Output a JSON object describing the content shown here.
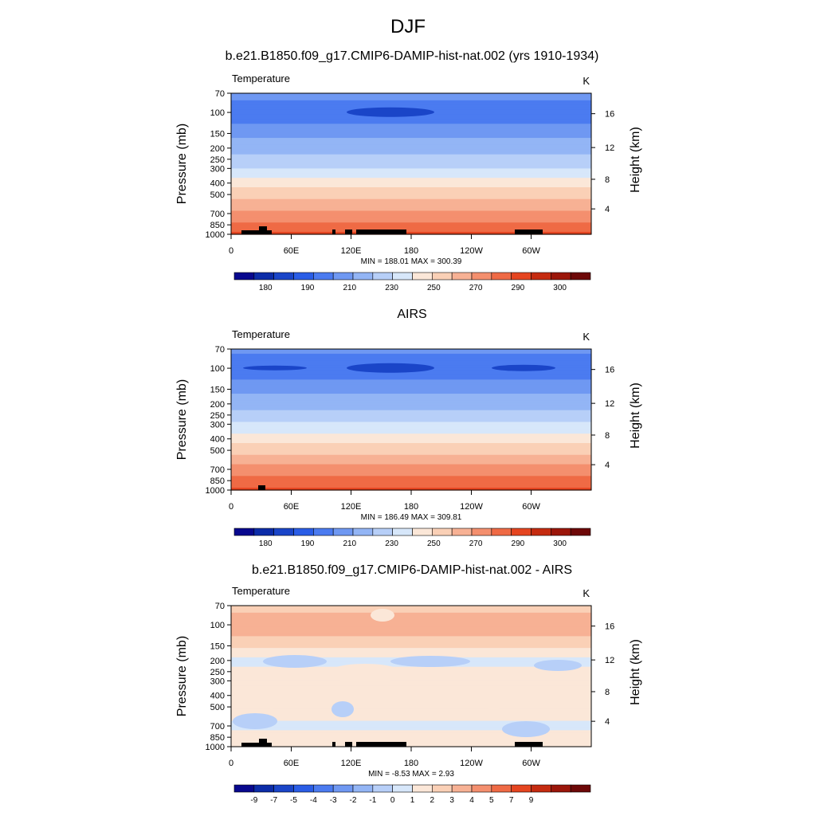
{
  "figure": {
    "title": "DJF"
  },
  "chart_data": [
    {
      "type": "contour",
      "title": "b.e21.B1850.f09_g17.CMIP6-DAMIP-hist-nat.002 (yrs 1910-1934)",
      "variable_label": "Temperature",
      "units": "K",
      "xlabel": "",
      "ylabel": "Pressure (mb)",
      "ylabel_right": "Height (km)",
      "x_ticks": [
        "0",
        "60E",
        "120E",
        "180",
        "120W",
        "60W"
      ],
      "y_ticks": [
        "70",
        "100",
        "150",
        "200",
        "250",
        "300",
        "400",
        "500",
        "700",
        "850",
        "1000"
      ],
      "y_ticks_right": [
        "4",
        "8",
        "12",
        "16"
      ],
      "stats": "MIN = 188.01  MAX = 300.39",
      "colorbar_labels": [
        "180",
        "190",
        "210",
        "230",
        "250",
        "270",
        "290",
        "300"
      ],
      "colorbar_colors": [
        "#08088e",
        "#0c2ca8",
        "#1a45c8",
        "#2a5de6",
        "#4b7bf0",
        "#6f98f2",
        "#93b5f5",
        "#b7cff8",
        "#d7e7fa",
        "#fbe7d8",
        "#fad0b6",
        "#f7b194",
        "#f48f6e",
        "#ef6a45",
        "#e54520",
        "#c52b10",
        "#9b160a",
        "#6d0808"
      ],
      "min": 188.01,
      "max": 300.39,
      "mean_profile_K": [
        [
          70,
          205
        ],
        [
          100,
          192
        ],
        [
          150,
          208
        ],
        [
          200,
          217
        ],
        [
          250,
          224
        ],
        [
          300,
          232
        ],
        [
          400,
          248
        ],
        [
          500,
          258
        ],
        [
          700,
          275
        ],
        [
          850,
          283
        ],
        [
          1000,
          292
        ]
      ]
    },
    {
      "type": "contour",
      "title": "AIRS",
      "variable_label": "Temperature",
      "units": "K",
      "xlabel": "",
      "ylabel": "Pressure (mb)",
      "ylabel_right": "Height (km)",
      "x_ticks": [
        "0",
        "60E",
        "120E",
        "180",
        "120W",
        "60W"
      ],
      "y_ticks": [
        "70",
        "100",
        "150",
        "200",
        "250",
        "300",
        "400",
        "500",
        "700",
        "850",
        "1000"
      ],
      "y_ticks_right": [
        "4",
        "8",
        "12",
        "16"
      ],
      "stats": "MIN = 186.49  MAX = 309.81",
      "colorbar_labels": [
        "180",
        "190",
        "210",
        "230",
        "250",
        "270",
        "290",
        "300"
      ],
      "colorbar_colors": [
        "#08088e",
        "#0c2ca8",
        "#1a45c8",
        "#2a5de6",
        "#4b7bf0",
        "#6f98f2",
        "#93b5f5",
        "#b7cff8",
        "#d7e7fa",
        "#fbe7d8",
        "#fad0b6",
        "#f7b194",
        "#f48f6e",
        "#ef6a45",
        "#e54520",
        "#c52b10",
        "#9b160a",
        "#6d0808"
      ],
      "min": 186.49,
      "max": 309.81,
      "mean_profile_K": [
        [
          70,
          204
        ],
        [
          100,
          190
        ],
        [
          150,
          207
        ],
        [
          200,
          216
        ],
        [
          250,
          224
        ],
        [
          300,
          233
        ],
        [
          400,
          249
        ],
        [
          500,
          259
        ],
        [
          700,
          276
        ],
        [
          850,
          284
        ],
        [
          1000,
          294
        ]
      ]
    },
    {
      "type": "contour",
      "title": "b.e21.B1850.f09_g17.CMIP6-DAMIP-hist-nat.002 - AIRS",
      "variable_label": "Temperature",
      "units": "K",
      "xlabel": "",
      "ylabel": "Pressure (mb)",
      "ylabel_right": "Height (km)",
      "x_ticks": [
        "0",
        "60E",
        "120E",
        "180",
        "120W",
        "60W"
      ],
      "y_ticks": [
        "70",
        "100",
        "150",
        "200",
        "250",
        "300",
        "400",
        "500",
        "700",
        "850",
        "1000"
      ],
      "y_ticks_right": [
        "4",
        "8",
        "12",
        "16"
      ],
      "stats": "MIN =  -8.53  MAX =   2.93",
      "colorbar_labels": [
        "-9",
        "-7",
        "-5",
        "-4",
        "-3",
        "-2",
        "-1",
        "0",
        "1",
        "2",
        "3",
        "4",
        "5",
        "7",
        "9"
      ],
      "colorbar_colors": [
        "#08088e",
        "#0c2ca8",
        "#1a45c8",
        "#2a5de6",
        "#4b7bf0",
        "#6f98f2",
        "#93b5f5",
        "#b7cff8",
        "#d7e7fa",
        "#fbe7d8",
        "#fad0b6",
        "#f7b194",
        "#f48f6e",
        "#ef6a45",
        "#e54520",
        "#c52b10",
        "#9b160a",
        "#6d0808"
      ],
      "min": -8.53,
      "max": 2.93,
      "mean_profile_K": [
        [
          70,
          0.3
        ],
        [
          100,
          2.0
        ],
        [
          150,
          0.2
        ],
        [
          200,
          -1.5
        ],
        [
          250,
          -0.5
        ],
        [
          300,
          -0.3
        ],
        [
          400,
          -0.3
        ],
        [
          500,
          -0.6
        ],
        [
          700,
          -1.2
        ],
        [
          850,
          -0.4
        ],
        [
          1000,
          -0.5
        ]
      ]
    }
  ]
}
